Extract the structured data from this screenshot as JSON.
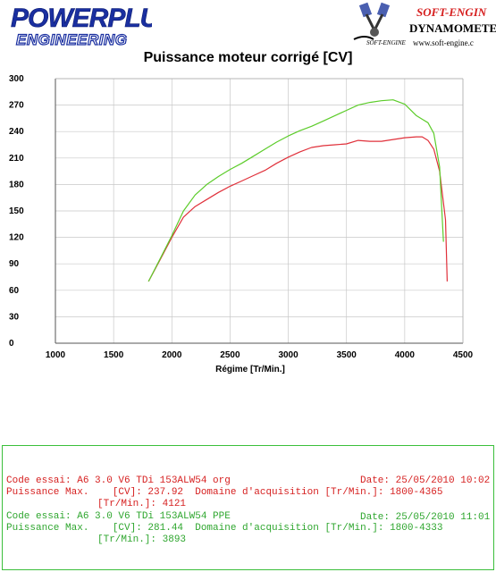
{
  "header": {
    "logo_left_line1": "POWERPLUS",
    "logo_left_line2": "ENGINEERING",
    "logo_right_brand": "SOFT-ENGIN",
    "logo_right_name": "DYNAMOMETE",
    "logo_right_url": "www.soft-engine.c",
    "logo_right_small": "SOFT-ENGINE"
  },
  "chart_data": {
    "type": "line",
    "title": "Puissance moteur corrigé [CV]",
    "xlabel": "Régime [Tr/Min.]",
    "ylabel": "",
    "xlim": [
      1000,
      4500
    ],
    "ylim": [
      0,
      300
    ],
    "xticks": [
      "1000",
      "1500",
      "2000",
      "2500",
      "3000",
      "3500",
      "4000",
      "4500"
    ],
    "yticks": [
      "0",
      "30",
      "60",
      "90",
      "120",
      "150",
      "180",
      "210",
      "240",
      "270",
      "300"
    ],
    "grid": true,
    "series": [
      {
        "name": "A6 3.0 V6 TDi 153ALW54 org",
        "color": "#e0303a",
        "x": [
          1800,
          1900,
          2000,
          2100,
          2200,
          2300,
          2400,
          2500,
          2600,
          2700,
          2800,
          2900,
          3000,
          3100,
          3200,
          3300,
          3400,
          3500,
          3600,
          3700,
          3800,
          3900,
          4000,
          4100,
          4150,
          4200,
          4250,
          4300,
          4350,
          4365
        ],
        "y": [
          70,
          95,
          120,
          143,
          155,
          163,
          171,
          178,
          184,
          190,
          196,
          204,
          211,
          217,
          222,
          224,
          225,
          226,
          230,
          229,
          229,
          231,
          233,
          234,
          234,
          230,
          220,
          195,
          140,
          70
        ]
      },
      {
        "name": "A6 3.0 V6 TDi 153ALW54 PPE",
        "color": "#5ccc2a",
        "x": [
          1800,
          1900,
          2000,
          2100,
          2200,
          2300,
          2400,
          2500,
          2600,
          2700,
          2800,
          2900,
          3000,
          3100,
          3200,
          3300,
          3400,
          3500,
          3600,
          3700,
          3800,
          3900,
          4000,
          4100,
          4150,
          4200,
          4250,
          4300,
          4333
        ],
        "y": [
          70,
          96,
          122,
          150,
          168,
          180,
          189,
          197,
          204,
          212,
          220,
          228,
          235,
          241,
          246,
          252,
          258,
          264,
          270,
          273,
          275,
          276,
          271,
          258,
          254,
          250,
          238,
          200,
          115
        ]
      }
    ]
  },
  "info": {
    "run1": {
      "line1_left": "Code essai: A6 3.0 V6 TDi 153ALW54 org",
      "line1_right": "Date: 25/05/2010 10:02",
      "line2": "Puissance Max.    [CV]: 237.92  Domaine d'acquisition [Tr/Min.]: 1800-4365",
      "line3": "[Tr/Min.]: 4121"
    },
    "run2": {
      "line1_left": "Code essai: A6 3.0 V6 TDi 153ALW54 PPE",
      "line1_right": "Date: 25/05/2010 11:01",
      "line2": "Puissance Max.    [CV]: 281.44  Domaine d'acquisition [Tr/Min.]: 1800-4333",
      "line3": "[Tr/Min.]: 3893"
    }
  }
}
